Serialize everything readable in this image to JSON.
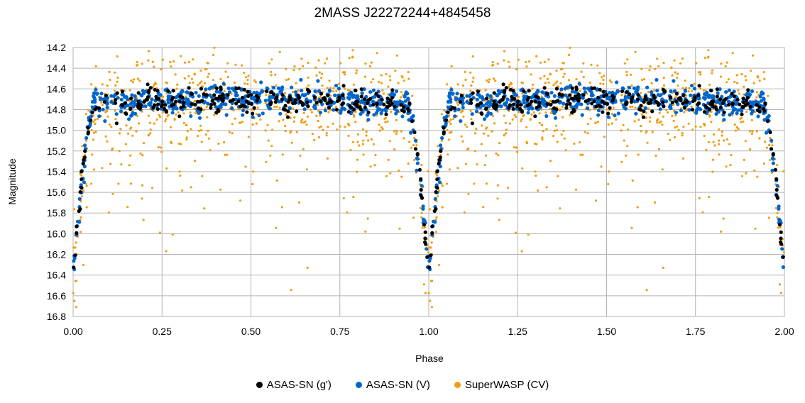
{
  "chart_data": {
    "type": "scatter",
    "title": "2MASS J22272244+4845458",
    "xlabel": "Phase",
    "ylabel": "Magnitude",
    "xlim": [
      0,
      2
    ],
    "ylim": [
      16.8,
      14.2
    ],
    "y_inverted": true,
    "grid": true,
    "x_ticks": [
      "0.00",
      "0.25",
      "0.50",
      "0.75",
      "1.00",
      "1.25",
      "1.50",
      "1.75",
      "2.00"
    ],
    "y_ticks": [
      "14.2",
      "14.4",
      "14.6",
      "14.8",
      "15.0",
      "15.2",
      "15.4",
      "15.6",
      "15.8",
      "16.0",
      "16.2",
      "16.4",
      "16.6",
      "16.8"
    ],
    "legend_position": "bottom",
    "light_curve_model": {
      "description_values": "phase-folded eclipsing binary light curve; primary minimum at phase 0.00/1.00",
      "out_of_eclipse_mag": 14.72,
      "eclipse_min_mag": 16.4,
      "eclipse_ingress_phase": 0.94,
      "eclipse_egress_phase": 0.06
    },
    "series": [
      {
        "name": "ASAS-SN (g')",
        "color": "#000000",
        "n_points": 260,
        "mag_center": 14.72,
        "scatter": 0.06
      },
      {
        "name": "ASAS-SN (V)",
        "color": "#0066cc",
        "n_points": 520,
        "mag_center": 14.7,
        "scatter": 0.07
      },
      {
        "name": "SuperWASP (CV)",
        "color": "#f39c12",
        "n_points": 700,
        "mag_center": 14.72,
        "scatter": 0.25
      }
    ]
  }
}
